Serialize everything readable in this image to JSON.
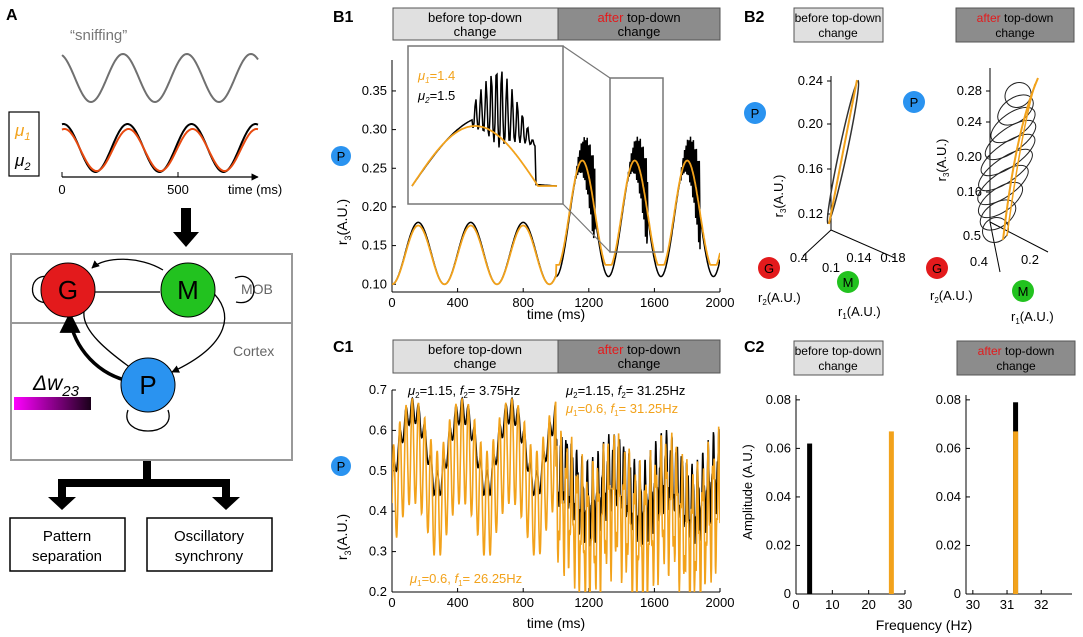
{
  "panel_labels": {
    "A": "A",
    "B1": "B1",
    "B2": "B2",
    "C1": "C1",
    "C2": "C2"
  },
  "panelA": {
    "sniff_label": "“sniffing”",
    "mu1": "μ",
    "mu1_sub": "1",
    "mu2": "μ",
    "mu2_sub": "2",
    "time_ticks": [
      "0",
      "500"
    ],
    "time_label": "time (ms)",
    "nodes": {
      "G": "G",
      "M": "M",
      "P": "P"
    },
    "mob_label": "MOB",
    "cortex_label": "Cortex",
    "delta_w": "Δw",
    "delta_w_sub": "23",
    "outputs": [
      [
        "Pattern",
        "separation"
      ],
      [
        "Oscillatory",
        "synchrony"
      ]
    ]
  },
  "banners": {
    "before": [
      "before top-down",
      "change"
    ],
    "after_red": "after",
    "after_rest": " top-down",
    "after_line2": "change"
  },
  "panelB1": {
    "yticks": [
      "0.10",
      "0.15",
      "0.20",
      "0.25",
      "0.30",
      "0.35"
    ],
    "xticks": [
      "0",
      "400",
      "800",
      "1200",
      "1600",
      "2000"
    ],
    "ylabel": "r",
    "ylabel_sub": "3",
    "ylabel_units": "(A.U.)",
    "xlabel": "time (ms)",
    "inset_mu1": "=1.4",
    "inset_mu2": "=1.5",
    "p": "P"
  },
  "panelB2": {
    "left": {
      "yticks": [
        "0.24",
        "0.20",
        "0.16",
        "0.12"
      ],
      "xticks_r1": [
        "0.14",
        "0.18"
      ],
      "r1_tick0": "0.1",
      "r2_tick": "0.4"
    },
    "right": {
      "yticks": [
        "0.28",
        "0.24",
        "0.20",
        "0.16"
      ],
      "r2_ticks": [
        "0.5",
        "0.4"
      ],
      "r1_tick": "0.2"
    },
    "r3": "r",
    "r3_sub": "3",
    "units": "(A.U.)",
    "r1": "r",
    "r1_sub": "1",
    "r2": "r",
    "r2_sub": "2",
    "nodes": {
      "P": "P",
      "G": "G",
      "M": "M"
    }
  },
  "panelC1": {
    "yticks": [
      "0.2",
      "0.3",
      "0.4",
      "0.5",
      "0.6",
      "0.7"
    ],
    "xticks": [
      "0",
      "400",
      "800",
      "1200",
      "1600",
      "2000"
    ],
    "xlabel": "time (ms)",
    "ylabel": "r",
    "ylabel_sub": "3",
    "ylabel_units": "(A.U.)",
    "ann_before_black": "=1.15,",
    "ann_before_black_f": "= 3.75Hz",
    "ann_after_black": "=1.15,",
    "ann_after_black_f": "= 31.25Hz",
    "ann_after_orange": "=0.6,",
    "ann_after_orange_f": "= 31.25Hz",
    "ann_bottom_orange": "=0.6,",
    "ann_bottom_orange_f": "= 26.25Hz",
    "p": "P"
  },
  "panelC2": {
    "yticks": [
      "0",
      "0.02",
      "0.04",
      "0.06",
      "0.08"
    ],
    "left_xticks": [
      "0",
      "10",
      "20",
      "30"
    ],
    "right_xticks": [
      "30",
      "31",
      "32"
    ],
    "ylabel": "Amplitude (A.U.)",
    "xlabel": "Frequency (Hz)"
  },
  "chart_data": [
    {
      "type": "line",
      "title": "B1",
      "xlabel": "time (ms)",
      "ylabel": "r3 (A.U.)",
      "xlim": [
        0,
        2000
      ],
      "ylim": [
        0.09,
        0.39
      ],
      "series": [
        {
          "name": "mu2=1.5",
          "color": "#000000",
          "desc": "oscillation 0.10-0.18 before 1000ms, bursting to ~0.33 after"
        },
        {
          "name": "mu1=1.4",
          "color": "#f2a21b",
          "desc": "oscillation 0.10-0.18 before 1000ms, ~0.26 after"
        }
      ]
    },
    {
      "type": "line",
      "title": "C1",
      "xlabel": "time (ms)",
      "ylabel": "r3 (A.U.)",
      "xlim": [
        0,
        2000
      ],
      "ylim": [
        0.2,
        0.7
      ],
      "series": [
        {
          "name": "mu2=1.15",
          "color": "#000000"
        },
        {
          "name": "mu1=0.6",
          "color": "#f2a21b"
        }
      ]
    },
    {
      "type": "bar",
      "title": "C2 before",
      "xlabel": "Frequency (Hz)",
      "ylabel": "Amplitude (A.U.)",
      "xlim": [
        0,
        30
      ],
      "ylim": [
        0,
        0.08
      ],
      "series": [
        {
          "name": "black",
          "color": "#000000",
          "x": [
            3.75
          ],
          "values": [
            0.062
          ]
        },
        {
          "name": "orange",
          "color": "#f2a21b",
          "x": [
            26.25
          ],
          "values": [
            0.067
          ]
        }
      ]
    },
    {
      "type": "bar",
      "title": "C2 after",
      "xlabel": "Frequency (Hz)",
      "ylabel": "Amplitude (A.U.)",
      "xlim": [
        30,
        33
      ],
      "ylim": [
        0,
        0.08
      ],
      "series": [
        {
          "name": "black",
          "color": "#000000",
          "x": [
            31.25
          ],
          "values": [
            0.079
          ]
        },
        {
          "name": "orange",
          "color": "#f2a21b",
          "x": [
            31.25
          ],
          "values": [
            0.067
          ]
        }
      ]
    }
  ],
  "colors": {
    "orange": "#f2a21b",
    "red": "#e31a1c",
    "green": "#22c21f",
    "blue": "#2a93f0",
    "gray": "#707070",
    "banner_light": "#e0e0e0",
    "banner_dark": "#8c8c8c"
  }
}
